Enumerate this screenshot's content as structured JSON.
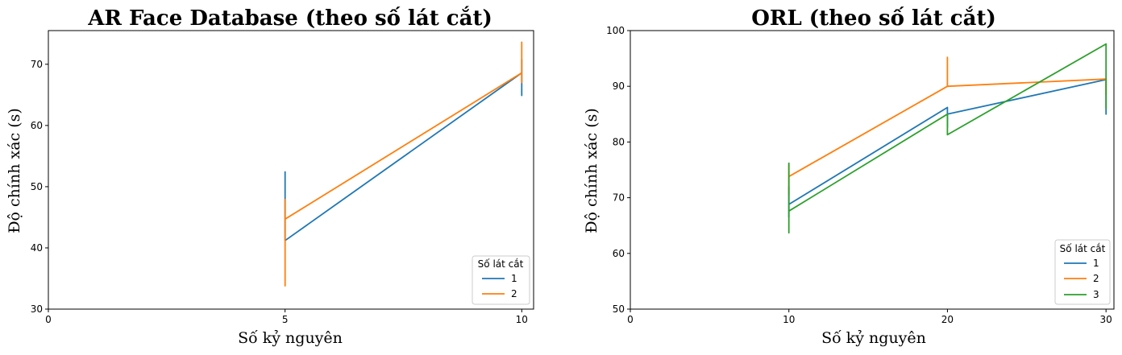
{
  "colors": {
    "series_1": "#1f77b4",
    "series_2": "#ff7f0e",
    "series_3": "#2ca02c"
  },
  "chart_data": [
    {
      "type": "line",
      "title": "AR Face Database (theo số lát cắt)",
      "xlabel": "Số kỷ nguyên",
      "ylabel": "Độ chính xác (s)",
      "xlim": [
        0,
        10.25
      ],
      "ylim": [
        30,
        75.5
      ],
      "xticks": [
        0,
        5,
        10
      ],
      "yticks": [
        30,
        40,
        50,
        60,
        70
      ],
      "legend_title": "Số lát cắt",
      "legend_loc": "lower right",
      "series": [
        {
          "name": "1",
          "color_key": "series_1",
          "points": [
            [
              5,
              52.5
            ],
            [
              5,
              48
            ],
            [
              5,
              49.7
            ],
            [
              5,
              41.2
            ],
            [
              10,
              68.6
            ],
            [
              10,
              64.9
            ],
            [
              10,
              70.8
            ],
            [
              10,
              68.6
            ]
          ]
        },
        {
          "name": "2",
          "color_key": "series_2",
          "points": [
            [
              5,
              48
            ],
            [
              5,
              33.8
            ],
            [
              5,
              47.6
            ],
            [
              5,
              44.7
            ],
            [
              10,
              68.6
            ],
            [
              10,
              73.6
            ],
            [
              10,
              67
            ],
            [
              10,
              68.6
            ]
          ]
        }
      ]
    },
    {
      "type": "line",
      "title": "ORL (theo số lát cắt)",
      "xlabel": "Số kỷ nguyên",
      "ylabel": "Độ chính xác (s)",
      "xlim": [
        0,
        30.5
      ],
      "ylim": [
        50,
        100
      ],
      "xticks": [
        0,
        10,
        20,
        30
      ],
      "yticks": [
        50,
        60,
        70,
        80,
        90,
        100
      ],
      "legend_title": "Số lát cắt",
      "legend_loc": "lower right",
      "series": [
        {
          "name": "1",
          "color_key": "series_1",
          "points": [
            [
              10,
              72
            ],
            [
              10,
              66.5
            ],
            [
              10,
              68.8
            ],
            [
              20,
              86.2
            ],
            [
              20,
              82.6
            ],
            [
              20,
              85
            ],
            [
              30,
              91.2
            ],
            [
              30,
              85
            ],
            [
              30,
              91.2
            ]
          ]
        },
        {
          "name": "2",
          "color_key": "series_2",
          "points": [
            [
              10,
              76
            ],
            [
              10,
              70.5
            ],
            [
              10,
              73.8
            ],
            [
              20,
              90
            ],
            [
              20,
              95.2
            ],
            [
              20,
              90
            ],
            [
              30,
              91.3
            ],
            [
              30,
              88.5
            ],
            [
              30,
              91.3
            ]
          ]
        },
        {
          "name": "3",
          "color_key": "series_3",
          "points": [
            [
              10,
              76.3
            ],
            [
              10,
              63.7
            ],
            [
              10,
              67.6
            ],
            [
              20,
              85
            ],
            [
              20,
              81.3
            ],
            [
              20,
              81.3
            ],
            [
              30,
              97.6
            ],
            [
              30,
              86
            ],
            [
              30,
              97.6
            ]
          ]
        }
      ]
    }
  ]
}
